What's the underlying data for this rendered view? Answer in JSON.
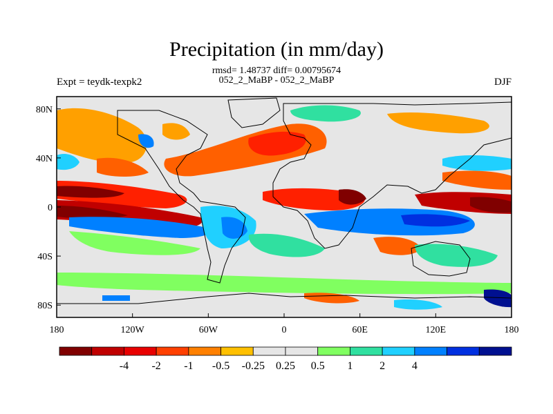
{
  "title": "Precipitation (in mm/day)",
  "stats": {
    "rmsd_line": "rmsd= 1.48737 diff= 0.00795674",
    "comparison": "052_2_MaBP - 052_2_MaBP"
  },
  "left_label": "Expt = teydk-texpk2",
  "right_label": "DJF",
  "x_ticks": [
    {
      "label": "180",
      "lon": -180
    },
    {
      "label": "120W",
      "lon": -120
    },
    {
      "label": "60W",
      "lon": -60
    },
    {
      "label": "0",
      "lon": 0
    },
    {
      "label": "60E",
      "lon": 60
    },
    {
      "label": "120E",
      "lon": 120
    },
    {
      "label": "180",
      "lon": 180
    }
  ],
  "y_ticks": [
    {
      "label": "80N",
      "lat": 80
    },
    {
      "label": "40N",
      "lat": 40
    },
    {
      "label": "0",
      "lat": 0
    },
    {
      "label": "40S",
      "lat": -40
    },
    {
      "label": "80S",
      "lat": -80
    }
  ],
  "colorbar": {
    "colors": [
      "#800000",
      "#c00000",
      "#e80000",
      "#ff4000",
      "#ff8000",
      "#ffc000",
      "#e6e6e6",
      "#e6e6e6",
      "#80ff60",
      "#30e0a0",
      "#20d0ff",
      "#0080ff",
      "#0030e0",
      "#001090"
    ],
    "labels": [
      "-4",
      "-2",
      "-1",
      "-0.5",
      "-0.25",
      "0.25",
      "0.5",
      "1",
      "2",
      "4"
    ]
  },
  "field_colors": {
    "neg4": "#800000",
    "neg2": "#c00000",
    "neg1": "#ff2000",
    "neg05": "#ff6000",
    "neg025": "#ffa000",
    "zero": "#e6e6e6",
    "pos025": "#80ff60",
    "pos05": "#30e0a0",
    "pos1": "#20d0ff",
    "pos2": "#0080ff",
    "pos4": "#0030e0",
    "pos8": "#001090"
  }
}
